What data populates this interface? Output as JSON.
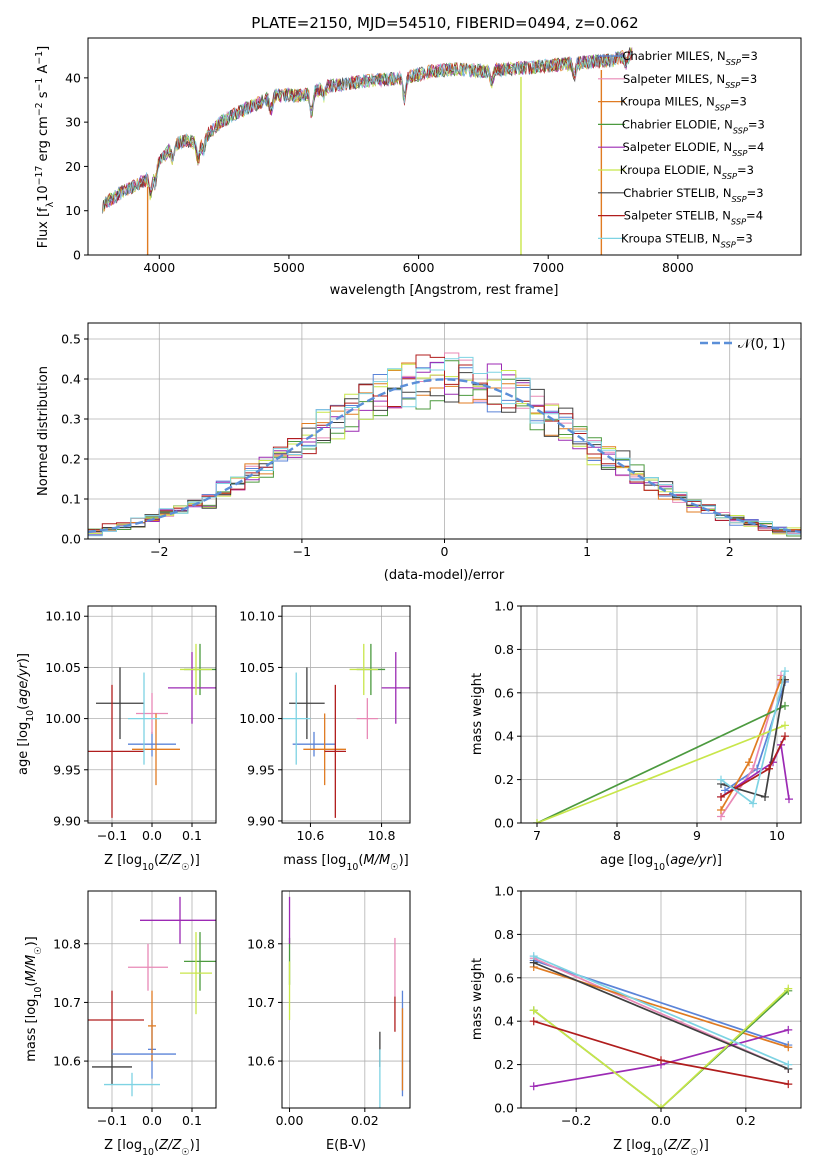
{
  "figure": {
    "title": "PLATE=2150, MJD=54510, FIBERID=0494, z=0.062"
  },
  "colors": {
    "Chabrier MILES": "#5b84d8",
    "Salpeter MILES": "#e889b6",
    "Kroupa MILES": "#e07b22",
    "Chabrier ELODIE": "#4c9a3f",
    "Salpeter ELODIE": "#9c2ab4",
    "Kroupa ELODIE": "#c8e64a",
    "Chabrier STELIB": "#404040",
    "Salpeter STELIB": "#b01d1d",
    "Kroupa STELIB": "#7ed3e3",
    "normal_curve": "#5b8fd8",
    "grid": "#b0b0b0"
  },
  "chart_data": [
    {
      "id": "spectrum",
      "type": "line",
      "xlabel": "wavelength [Angstrom, rest frame]",
      "ylabel": "Flux [f_λ10^-17 erg cm^-2 s^-1 A^-1]",
      "xlim": [
        3450,
        8950
      ],
      "ylim": [
        0,
        49
      ],
      "xticks": [
        4000,
        5000,
        6000,
        7000,
        8000
      ],
      "yticks": [
        0,
        10,
        20,
        30,
        40
      ],
      "grid": false,
      "legend_position": "upper right",
      "legend": [
        {
          "name": "Chabrier MILES",
          "nssp": "3"
        },
        {
          "name": "Salpeter MILES",
          "nssp": "3"
        },
        {
          "name": "Kroupa MILES",
          "nssp": "3"
        },
        {
          "name": "Chabrier ELODIE",
          "nssp": "3"
        },
        {
          "name": "Salpeter ELODIE",
          "nssp": "4"
        },
        {
          "name": "Kroupa ELODIE",
          "nssp": "3"
        },
        {
          "name": "Chabrier STELIB",
          "nssp": "3"
        },
        {
          "name": "Salpeter STELIB",
          "nssp": "4"
        },
        {
          "name": "Kroupa STELIB",
          "nssp": "3"
        }
      ],
      "continuum": [
        [
          3560,
          11
        ],
        [
          3600,
          12
        ],
        [
          3700,
          14
        ],
        [
          3800,
          15.5
        ],
        [
          3900,
          17
        ],
        [
          4000,
          21
        ],
        [
          4100,
          24.5
        ],
        [
          4200,
          26
        ],
        [
          4300,
          25
        ],
        [
          4400,
          28
        ],
        [
          4500,
          30.5
        ],
        [
          4700,
          33.5
        ],
        [
          4900,
          36
        ],
        [
          5100,
          36
        ],
        [
          5300,
          38
        ],
        [
          5500,
          39
        ],
        [
          5700,
          39.5
        ],
        [
          5900,
          40
        ],
        [
          6100,
          41.5
        ],
        [
          6300,
          42
        ],
        [
          6500,
          41.5
        ],
        [
          6700,
          42
        ],
        [
          6900,
          42.5
        ],
        [
          7100,
          43
        ],
        [
          7300,
          43.5
        ],
        [
          7500,
          44
        ],
        [
          7650,
          45.5
        ]
      ],
      "dips": [
        [
          3933,
          -5
        ],
        [
          3968,
          -4
        ],
        [
          4101,
          -3
        ],
        [
          4300,
          -4
        ],
        [
          4340,
          -3
        ],
        [
          4861,
          -3
        ],
        [
          5175,
          -5
        ],
        [
          5270,
          -2
        ],
        [
          5890,
          -5
        ],
        [
          6563,
          -3
        ],
        [
          7200,
          -3
        ],
        [
          7600,
          -2
        ]
      ],
      "spikes": [
        [
          3910,
          0
        ],
        [
          6790,
          0
        ],
        [
          7410,
          0
        ]
      ]
    },
    {
      "id": "residuals",
      "type": "histogram",
      "xlabel": "(data-model)/error",
      "ylabel": "Normed distribution",
      "xlim": [
        -2.5,
        2.5
      ],
      "ylim": [
        0,
        0.54
      ],
      "xticks": [
        -2,
        -1,
        0,
        1,
        2
      ],
      "yticks": [
        0.0,
        0.1,
        0.2,
        0.3,
        0.4,
        0.5
      ],
      "grid": true,
      "bin_width": 0.1,
      "legend": "𝒩(0, 1)",
      "legend_position": "upper right"
    },
    {
      "id": "age_vs_Z",
      "type": "errorbar",
      "xlabel": "Z [log10(Z/Z☉)]",
      "ylabel": "age  [log10(age/yr)]",
      "xlim": [
        -0.16,
        0.16
      ],
      "ylim": [
        9.898,
        10.11
      ],
      "xticks": [
        -0.1,
        0.0,
        0.1
      ],
      "yticks": [
        9.9,
        9.95,
        10.0,
        10.05,
        10.1
      ],
      "grid": true,
      "points": [
        {
          "series": "Chabrier MILES",
          "x": 0.0,
          "xerr": 0.06,
          "y": 9.975,
          "yerr": 0.012
        },
        {
          "series": "Salpeter MILES",
          "x": 0.0,
          "xerr": 0.04,
          "y": 10.005,
          "yerr": 0.02
        },
        {
          "series": "Kroupa MILES",
          "x": 0.01,
          "xerr": 0.06,
          "y": 9.97,
          "yerr": 0.035
        },
        {
          "series": "Chabrier ELODIE",
          "x": 0.12,
          "xerr": 0.04,
          "y": 10.048,
          "yerr": 0.025
        },
        {
          "series": "Salpeter ELODIE",
          "x": 0.1,
          "xerr": 0.06,
          "y": 10.03,
          "yerr": 0.035
        },
        {
          "series": "Kroupa ELODIE",
          "x": 0.11,
          "xerr": 0.04,
          "y": 10.048,
          "yerr": 0.025
        },
        {
          "series": "Chabrier STELIB",
          "x": -0.08,
          "xerr": 0.06,
          "y": 10.015,
          "yerr": 0.035
        },
        {
          "series": "Salpeter STELIB",
          "x": -0.1,
          "xerr": 0.08,
          "y": 9.968,
          "yerr": 0.065
        },
        {
          "series": "Kroupa STELIB",
          "x": -0.02,
          "xerr": 0.04,
          "y": 10.0,
          "yerr": 0.045
        }
      ]
    },
    {
      "id": "age_vs_mass",
      "type": "errorbar",
      "xlabel": "mass [log10(M/M☉)]",
      "ylabel": "",
      "xlim": [
        10.52,
        10.88
      ],
      "ylim": [
        9.898,
        10.11
      ],
      "xticks": [
        10.6,
        10.8
      ],
      "yticks": [
        9.9,
        9.95,
        10.0,
        10.05,
        10.1
      ],
      "grid": true,
      "points": [
        {
          "series": "Chabrier MILES",
          "x": 10.61,
          "xerr": 0.06,
          "y": 9.975,
          "yerr": 0.012
        },
        {
          "series": "Salpeter MILES",
          "x": 10.76,
          "xerr": 0.03,
          "y": 10.0,
          "yerr": 0.02
        },
        {
          "series": "Kroupa MILES",
          "x": 10.64,
          "xerr": 0.06,
          "y": 9.97,
          "yerr": 0.035
        },
        {
          "series": "Chabrier ELODIE",
          "x": 10.77,
          "xerr": 0.04,
          "y": 10.048,
          "yerr": 0.025
        },
        {
          "series": "Salpeter ELODIE",
          "x": 10.84,
          "xerr": 0.04,
          "y": 10.03,
          "yerr": 0.035
        },
        {
          "series": "Kroupa ELODIE",
          "x": 10.75,
          "xerr": 0.04,
          "y": 10.048,
          "yerr": 0.025
        },
        {
          "series": "Chabrier STELIB",
          "x": 10.59,
          "xerr": 0.05,
          "y": 10.015,
          "yerr": 0.035
        },
        {
          "series": "Salpeter STELIB",
          "x": 10.67,
          "xerr": 0.03,
          "y": 9.968,
          "yerr": 0.065
        },
        {
          "series": "Kroupa STELIB",
          "x": 10.56,
          "xerr": 0.04,
          "y": 10.0,
          "yerr": 0.045
        }
      ]
    },
    {
      "id": "weight_vs_age",
      "type": "line",
      "xlabel": "age  [log10(age/yr)]",
      "ylabel": "mass weight",
      "xlim": [
        6.8,
        10.3
      ],
      "ylim": [
        0,
        1.0
      ],
      "xticks": [
        7,
        8,
        9,
        10
      ],
      "yticks": [
        0.0,
        0.2,
        0.4,
        0.6,
        0.8,
        1.0
      ],
      "grid": true,
      "series": [
        {
          "series": "Chabrier MILES",
          "x": [
            9.35,
            9.75,
            10.1
          ],
          "y": [
            0.15,
            0.25,
            0.65
          ]
        },
        {
          "series": "Salpeter MILES",
          "x": [
            9.3,
            9.7,
            10.05
          ],
          "y": [
            0.03,
            0.25,
            0.68
          ]
        },
        {
          "series": "Kroupa MILES",
          "x": [
            9.3,
            9.65,
            10.05
          ],
          "y": [
            0.06,
            0.28,
            0.66
          ]
        },
        {
          "series": "Chabrier ELODIE",
          "x": [
            7.0,
            10.1
          ],
          "y": [
            0.0,
            0.54
          ]
        },
        {
          "series": "Salpeter ELODIE",
          "x": [
            9.3,
            9.95,
            10.05,
            10.15
          ],
          "y": [
            0.12,
            0.28,
            0.36,
            0.11
          ]
        },
        {
          "series": "Kroupa ELODIE",
          "x": [
            7.0,
            10.1
          ],
          "y": [
            0.0,
            0.45
          ]
        },
        {
          "series": "Chabrier STELIB",
          "x": [
            9.3,
            9.85,
            10.1
          ],
          "y": [
            0.18,
            0.12,
            0.66
          ]
        },
        {
          "series": "Salpeter STELIB",
          "x": [
            9.3,
            9.9,
            10.1
          ],
          "y": [
            0.12,
            0.25,
            0.4
          ]
        },
        {
          "series": "Kroupa STELIB",
          "x": [
            9.3,
            9.7,
            10.1
          ],
          "y": [
            0.2,
            0.09,
            0.7
          ]
        }
      ]
    },
    {
      "id": "mass_vs_Z",
      "type": "errorbar",
      "xlabel": "Z [log10(Z/Z☉)]",
      "ylabel": "mass [log10(M/M☉)]",
      "xlim": [
        -0.16,
        0.16
      ],
      "ylim": [
        10.52,
        10.89
      ],
      "xticks": [
        -0.1,
        0.0,
        0.1
      ],
      "yticks": [
        10.6,
        10.7,
        10.8
      ],
      "grid": true,
      "points": [
        {
          "series": "Chabrier MILES",
          "x": 0.0,
          "xerr": 0.01,
          "y": 10.62,
          "yerr": 0.05
        },
        {
          "series": "Salpeter MILES",
          "x": -0.01,
          "xerr": 0.05,
          "y": 10.76,
          "yerr": 0.04
        },
        {
          "series": "Kroupa MILES",
          "x": 0.0,
          "xerr": 0.01,
          "y": 10.66,
          "yerr": 0.06
        },
        {
          "series": "Chabrier ELODIE",
          "x": 0.12,
          "xerr": 0.04,
          "y": 10.77,
          "yerr": 0.05
        },
        {
          "series": "Salpeter ELODIE",
          "x": 0.07,
          "xerr": 0.1,
          "y": 10.84,
          "yerr": 0.04
        },
        {
          "series": "Kroupa ELODIE",
          "x": 0.11,
          "xerr": 0.04,
          "y": 10.75,
          "yerr": 0.07
        },
        {
          "series": "Chabrier STELIB",
          "x": -0.1,
          "xerr": 0.05,
          "y": 10.59,
          "yerr": 0.03
        },
        {
          "series": "Salpeter STELIB",
          "x": -0.1,
          "xerr": 0.08,
          "y": 10.67,
          "yerr": 0.05
        },
        {
          "series": "Kroupa STELIB",
          "x": -0.05,
          "xerr": 0.07,
          "y": 10.56,
          "yerr": 0.02
        },
        {
          "series": "Chabrier MILES",
          "x": -0.02,
          "xerr": 0.08,
          "y": 10.612,
          "yerr": 0.0
        }
      ]
    },
    {
      "id": "mass_vs_ebv",
      "type": "errorbar",
      "xlabel": "E(B-V)",
      "ylabel": "",
      "xlim": [
        -0.002,
        0.032
      ],
      "ylim": [
        10.52,
        10.89
      ],
      "xticks": [
        0.0,
        0.02
      ],
      "yticks": [
        10.6,
        10.7,
        10.8
      ],
      "grid": true,
      "points": [
        {
          "series": "Chabrier MILES",
          "x": 0.03,
          "xerr": 0,
          "y": 10.63,
          "yerr": 0.09
        },
        {
          "series": "Salpeter MILES",
          "x": 0.028,
          "xerr": 0,
          "y": 10.76,
          "yerr": 0.05
        },
        {
          "series": "Kroupa MILES",
          "x": 0.03,
          "xerr": 0,
          "y": 10.62,
          "yerr": 0.07
        },
        {
          "series": "Chabrier ELODIE",
          "x": 0.0,
          "xerr": 0,
          "y": 10.77,
          "yerr": 0.04
        },
        {
          "series": "Salpeter ELODIE",
          "x": 0.0,
          "xerr": 0,
          "y": 10.84,
          "yerr": 0.04
        },
        {
          "series": "Kroupa ELODIE",
          "x": 0.0,
          "xerr": 0,
          "y": 10.72,
          "yerr": 0.05
        },
        {
          "series": "Chabrier STELIB",
          "x": 0.024,
          "xerr": 0,
          "y": 10.62,
          "yerr": 0.03
        },
        {
          "series": "Salpeter STELIB",
          "x": 0.028,
          "xerr": 0,
          "y": 10.68,
          "yerr": 0.03
        },
        {
          "series": "Kroupa STELIB",
          "x": 0.024,
          "xerr": 0,
          "y": 10.57,
          "yerr": 0.05
        }
      ]
    },
    {
      "id": "weight_vs_Z",
      "type": "line",
      "xlabel": "Z [log10(Z/Z☉)]",
      "ylabel": "mass weight",
      "xlim": [
        -0.33,
        0.33
      ],
      "ylim": [
        0,
        1.0
      ],
      "xticks": [
        -0.2,
        0.0,
        0.2
      ],
      "yticks": [
        0.0,
        0.2,
        0.4,
        0.6,
        0.8,
        1.0
      ],
      "grid": true,
      "series": [
        {
          "series": "Chabrier MILES",
          "x": [
            -0.3,
            0.3
          ],
          "y": [
            0.68,
            0.29
          ]
        },
        {
          "series": "Salpeter MILES",
          "x": [
            -0.3,
            0.3
          ],
          "y": [
            0.69,
            0.18
          ]
        },
        {
          "series": "Kroupa MILES",
          "x": [
            -0.3,
            0.3
          ],
          "y": [
            0.65,
            0.28
          ]
        },
        {
          "series": "Chabrier ELODIE",
          "x": [
            -0.3,
            0.0,
            0.3
          ],
          "y": [
            0.45,
            0.0,
            0.54
          ]
        },
        {
          "series": "Salpeter ELODIE",
          "x": [
            -0.3,
            0.0,
            0.3
          ],
          "y": [
            0.1,
            0.2,
            0.36
          ]
        },
        {
          "series": "Kroupa ELODIE",
          "x": [
            -0.3,
            0.0,
            0.3
          ],
          "y": [
            0.45,
            0.0,
            0.55
          ]
        },
        {
          "series": "Chabrier STELIB",
          "x": [
            -0.3,
            0.3
          ],
          "y": [
            0.67,
            0.18
          ]
        },
        {
          "series": "Salpeter STELIB",
          "x": [
            -0.3,
            0.0,
            0.3
          ],
          "y": [
            0.4,
            0.22,
            0.11
          ]
        },
        {
          "series": "Kroupa STELIB",
          "x": [
            -0.3,
            0.3
          ],
          "y": [
            0.7,
            0.2
          ]
        }
      ]
    }
  ]
}
